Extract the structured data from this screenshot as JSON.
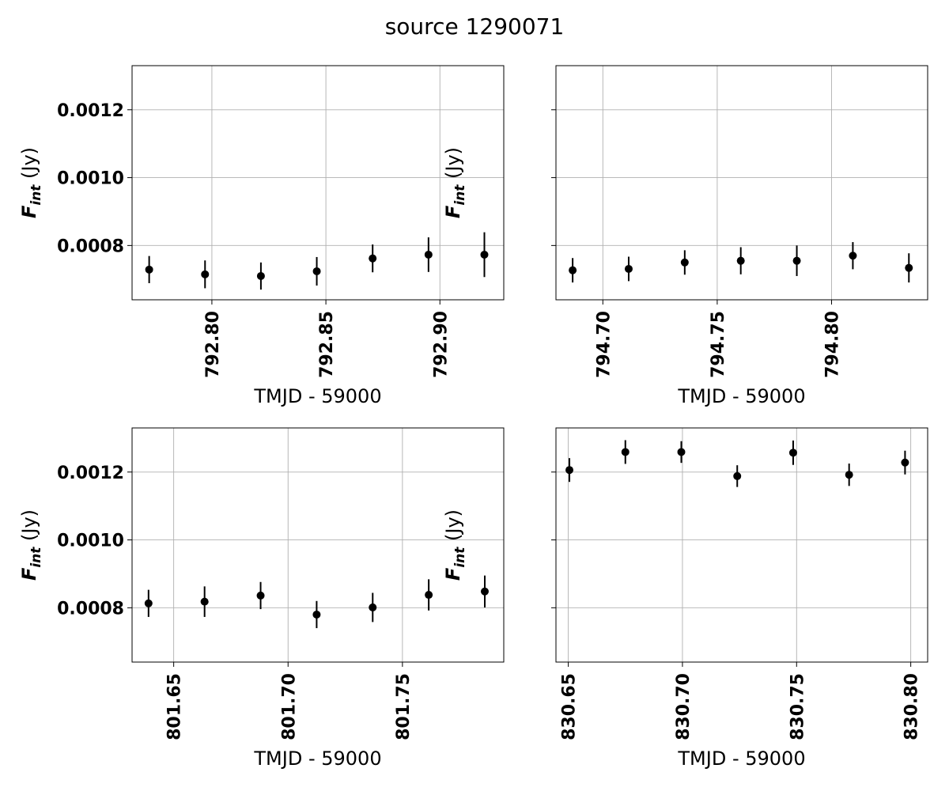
{
  "figure": {
    "title": "source 1290071"
  },
  "chart_data": [
    {
      "type": "scatter",
      "panel": "top-left",
      "xlabel": "TMJD - 59000",
      "ylabel": {
        "main": "F",
        "sub": "int",
        "unit": " (Jy)"
      },
      "xlim": [
        792.765,
        792.928
      ],
      "ylim": [
        0.00064,
        0.00133
      ],
      "xticks": [
        792.8,
        792.85,
        792.9
      ],
      "xticklabels": [
        "792.80",
        "792.85",
        "792.90"
      ],
      "yticks": [
        0.0008,
        0.001,
        0.0012
      ],
      "yticklabels": [
        "0.0008",
        "0.0010",
        "0.0012"
      ],
      "show_yticklabels": true,
      "grid": true,
      "points": [
        {
          "x": 792.7725,
          "y": 0.000729,
          "err": 4e-05
        },
        {
          "x": 792.797,
          "y": 0.000715,
          "err": 4.1e-05
        },
        {
          "x": 792.8215,
          "y": 0.00071,
          "err": 4e-05
        },
        {
          "x": 792.846,
          "y": 0.000724,
          "err": 4.2e-05
        },
        {
          "x": 792.8705,
          "y": 0.000762,
          "err": 4.1e-05
        },
        {
          "x": 792.895,
          "y": 0.000773,
          "err": 5.1e-05
        },
        {
          "x": 792.9195,
          "y": 0.000773,
          "err": 6.6e-05
        }
      ]
    },
    {
      "type": "scatter",
      "panel": "top-right",
      "xlabel": "TMJD - 59000",
      "ylabel": {
        "main": "F",
        "sub": "int",
        "unit": " (Jy)"
      },
      "xlim": [
        794.6795,
        794.842
      ],
      "ylim": [
        0.00064,
        0.00133
      ],
      "xticks": [
        794.7,
        794.75,
        794.8
      ],
      "xticklabels": [
        "794.70",
        "794.75",
        "794.80"
      ],
      "yticks": [
        0.0008,
        0.001,
        0.0012
      ],
      "yticklabels": [
        "0.0008",
        "0.0010",
        "0.0012"
      ],
      "show_yticklabels": false,
      "grid": true,
      "points": [
        {
          "x": 794.6868,
          "y": 0.000727,
          "err": 3.6e-05
        },
        {
          "x": 794.7113,
          "y": 0.000731,
          "err": 3.6e-05
        },
        {
          "x": 794.7358,
          "y": 0.00075,
          "err": 3.6e-05
        },
        {
          "x": 794.7603,
          "y": 0.000755,
          "err": 4e-05
        },
        {
          "x": 794.7848,
          "y": 0.000755,
          "err": 4.5e-05
        },
        {
          "x": 794.8093,
          "y": 0.00077,
          "err": 4e-05
        },
        {
          "x": 794.8338,
          "y": 0.000734,
          "err": 4.3e-05
        }
      ]
    },
    {
      "type": "scatter",
      "panel": "bottom-left",
      "xlabel": "TMJD - 59000",
      "ylabel": {
        "main": "F",
        "sub": "int",
        "unit": " (Jy)"
      },
      "xlim": [
        801.6318,
        801.7943
      ],
      "ylim": [
        0.00064,
        0.00133
      ],
      "xticks": [
        801.65,
        801.7,
        801.75
      ],
      "xticklabels": [
        "801.65",
        "801.70",
        "801.75"
      ],
      "yticks": [
        0.0008,
        0.001,
        0.0012
      ],
      "yticklabels": [
        "0.0008",
        "0.0010",
        "0.0012"
      ],
      "show_yticklabels": true,
      "grid": true,
      "points": [
        {
          "x": 801.639,
          "y": 0.000813,
          "err": 4e-05
        },
        {
          "x": 801.6635,
          "y": 0.000818,
          "err": 4.5e-05
        },
        {
          "x": 801.688,
          "y": 0.000836,
          "err": 4e-05
        },
        {
          "x": 801.7125,
          "y": 0.00078,
          "err": 4e-05
        },
        {
          "x": 801.737,
          "y": 0.000801,
          "err": 4.3e-05
        },
        {
          "x": 801.7615,
          "y": 0.000838,
          "err": 4.6e-05
        },
        {
          "x": 801.786,
          "y": 0.000848,
          "err": 4.7e-05
        }
      ]
    },
    {
      "type": "scatter",
      "panel": "bottom-right",
      "xlabel": "TMJD - 59000",
      "ylabel": {
        "main": "F",
        "sub": "int",
        "unit": " (Jy)"
      },
      "xlim": [
        830.6446,
        830.8074
      ],
      "ylim": [
        0.00064,
        0.00133
      ],
      "xticks": [
        830.65,
        830.7,
        830.75,
        830.8
      ],
      "xticklabels": [
        "830.65",
        "830.70",
        "830.75",
        "830.80"
      ],
      "yticks": [
        0.0008,
        0.001,
        0.0012
      ],
      "yticklabels": [
        "0.0008",
        "0.0010",
        "0.0012"
      ],
      "show_yticklabels": false,
      "grid": true,
      "points": [
        {
          "x": 830.6505,
          "y": 0.001206,
          "err": 3.5e-05
        },
        {
          "x": 830.675,
          "y": 0.001259,
          "err": 3.5e-05
        },
        {
          "x": 830.6995,
          "y": 0.001259,
          "err": 3.2e-05
        },
        {
          "x": 830.724,
          "y": 0.001188,
          "err": 3.2e-05
        },
        {
          "x": 830.7485,
          "y": 0.001257,
          "err": 3.6e-05
        },
        {
          "x": 830.773,
          "y": 0.001192,
          "err": 3.3e-05
        },
        {
          "x": 830.7975,
          "y": 0.001228,
          "err": 3.5e-05
        }
      ]
    }
  ]
}
